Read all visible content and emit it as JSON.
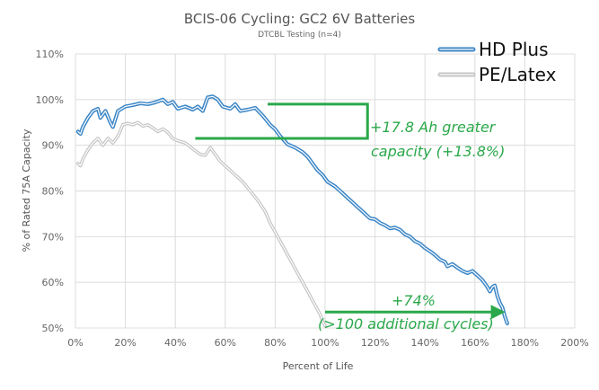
{
  "chart_data": {
    "type": "line",
    "title": "BCIS-06 Cycling: GC2 6V Batteries",
    "subtitle": "DTCBL Testing (n=4)",
    "xlabel": "Percent of Life",
    "ylabel": "% of Rated 75A Capacity",
    "xlim": [
      0,
      200
    ],
    "ylim": [
      50,
      110
    ],
    "x_ticks": [
      "0%",
      "20%",
      "40%",
      "60%",
      "80%",
      "100%",
      "120%",
      "140%",
      "160%",
      "180%",
      "200%"
    ],
    "y_ticks": [
      "50%",
      "60%",
      "70%",
      "80%",
      "90%",
      "100%",
      "110%"
    ],
    "grid": true,
    "legend_position": "top-right",
    "series": [
      {
        "name": "HD Plus",
        "color": "#3b86c6",
        "points": [
          [
            1,
            93
          ],
          [
            2,
            92.5
          ],
          [
            3,
            94
          ],
          [
            5,
            96
          ],
          [
            7,
            97.5
          ],
          [
            9,
            98
          ],
          [
            10,
            96
          ],
          [
            12,
            97.5
          ],
          [
            14,
            95
          ],
          [
            15,
            94
          ],
          [
            17,
            97.5
          ],
          [
            20,
            98.5
          ],
          [
            23,
            98.8
          ],
          [
            26,
            99.2
          ],
          [
            29,
            99
          ],
          [
            32,
            99.4
          ],
          [
            35,
            100
          ],
          [
            37,
            99
          ],
          [
            39,
            99.5
          ],
          [
            41,
            98
          ],
          [
            44,
            98.5
          ],
          [
            47,
            97.8
          ],
          [
            49,
            98.5
          ],
          [
            51,
            97.5
          ],
          [
            53,
            100.5
          ],
          [
            55,
            100.7
          ],
          [
            57,
            100
          ],
          [
            59,
            98.5
          ],
          [
            62,
            98
          ],
          [
            64,
            99
          ],
          [
            66,
            97.5
          ],
          [
            69,
            97.8
          ],
          [
            72,
            98.2
          ],
          [
            75,
            96.5
          ],
          [
            78,
            94.5
          ],
          [
            80,
            93.5
          ],
          [
            82,
            92
          ],
          [
            85,
            90.2
          ],
          [
            88,
            89.5
          ],
          [
            91,
            88.5
          ],
          [
            93,
            87.5
          ],
          [
            95,
            86
          ],
          [
            97,
            84.5
          ],
          [
            99,
            83.5
          ],
          [
            101,
            82
          ],
          [
            104,
            81
          ],
          [
            106,
            80
          ],
          [
            108,
            79
          ],
          [
            110,
            78
          ],
          [
            112,
            77
          ],
          [
            114,
            76
          ],
          [
            116,
            75
          ],
          [
            118,
            74
          ],
          [
            120,
            73.8
          ],
          [
            122,
            73
          ],
          [
            124,
            72.5
          ],
          [
            126,
            71.8
          ],
          [
            128,
            72
          ],
          [
            130,
            71.5
          ],
          [
            132,
            70.5
          ],
          [
            134,
            70
          ],
          [
            136,
            69
          ],
          [
            138,
            68.5
          ],
          [
            140,
            67.5
          ],
          [
            142,
            66.8
          ],
          [
            144,
            66
          ],
          [
            146,
            65
          ],
          [
            148,
            64.5
          ],
          [
            149,
            63.5
          ],
          [
            151,
            64
          ],
          [
            153,
            63.2
          ],
          [
            155,
            62.5
          ],
          [
            157,
            62
          ],
          [
            159,
            62.5
          ],
          [
            161,
            61.5
          ],
          [
            163,
            60.5
          ],
          [
            165,
            59
          ],
          [
            166,
            58
          ],
          [
            167,
            59
          ],
          [
            168,
            59.3
          ],
          [
            169,
            57
          ],
          [
            170,
            55.5
          ],
          [
            171,
            54.5
          ],
          [
            172,
            52.5
          ],
          [
            173,
            51
          ]
        ]
      },
      {
        "name": "PE/Latex",
        "color": "#c4c4c4",
        "points": [
          [
            1,
            86
          ],
          [
            2,
            85.5
          ],
          [
            3,
            87
          ],
          [
            5,
            89
          ],
          [
            7,
            90.5
          ],
          [
            9,
            91.5
          ],
          [
            11,
            90
          ],
          [
            13,
            91.5
          ],
          [
            15,
            90.5
          ],
          [
            17,
            92
          ],
          [
            19,
            94.5
          ],
          [
            21,
            94.8
          ],
          [
            23,
            94.5
          ],
          [
            25,
            95
          ],
          [
            27,
            94.2
          ],
          [
            29,
            94.5
          ],
          [
            31,
            93.8
          ],
          [
            33,
            93
          ],
          [
            35,
            93.6
          ],
          [
            37,
            92.8
          ],
          [
            39,
            91.5
          ],
          [
            41,
            91
          ],
          [
            44,
            90.5
          ],
          [
            47,
            89.2
          ],
          [
            50,
            88
          ],
          [
            52,
            87.8
          ],
          [
            54,
            89.5
          ],
          [
            56,
            88
          ],
          [
            58,
            86.5
          ],
          [
            61,
            85
          ],
          [
            64,
            83.5
          ],
          [
            67,
            82
          ],
          [
            70,
            80
          ],
          [
            73,
            78
          ],
          [
            76,
            75.5
          ],
          [
            78,
            73
          ],
          [
            80,
            71
          ],
          [
            82,
            69
          ],
          [
            84,
            67
          ],
          [
            86,
            65
          ],
          [
            88,
            63
          ],
          [
            90,
            61
          ],
          [
            92,
            59
          ],
          [
            94,
            57
          ],
          [
            96,
            55
          ],
          [
            98,
            53
          ],
          [
            99,
            51.5
          ],
          [
            100,
            50.5
          ]
        ]
      }
    ],
    "annotations": [
      {
        "text": "+17.8 Ah greater",
        "kind": "bracket"
      },
      {
        "text": "capacity (+13.8%)",
        "kind": "bracket"
      },
      {
        "text": "+74%",
        "kind": "arrow"
      },
      {
        "text": "(>100 additional cycles)",
        "kind": "arrow"
      }
    ],
    "annotation_color": "#2aa84a",
    "bracket": {
      "x_from": 48,
      "x_to": 117,
      "y_top": 99,
      "y_bottom": 91.5
    },
    "arrow": {
      "x_from": 100,
      "x_to": 170,
      "y": 53.5
    }
  }
}
